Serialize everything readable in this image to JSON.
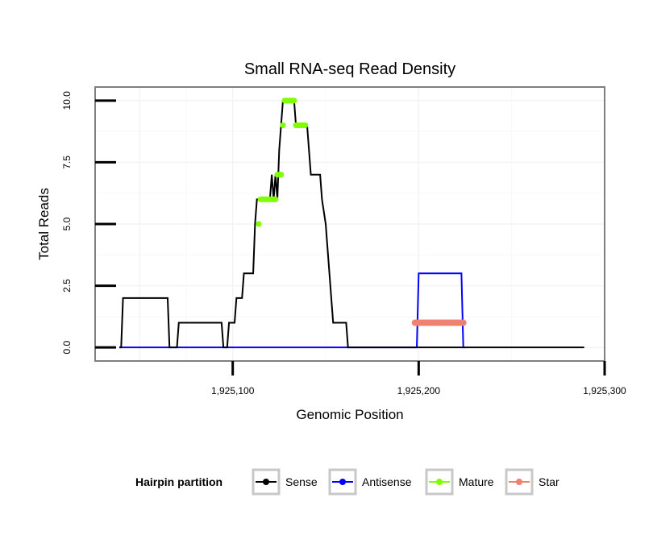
{
  "chart_data": {
    "type": "line",
    "title": "Small RNA-seq Read Density",
    "xlabel": "Genomic Position",
    "ylabel": "Total Reads",
    "xlim": [
      1925026,
      1925300
    ],
    "ylim": [
      -0.55,
      10.55
    ],
    "x_ticks": [
      1925100,
      1925200,
      1925300
    ],
    "x_tick_labels": [
      "1,925,100",
      "1,925,200",
      "1,925,300"
    ],
    "y_ticks": [
      0,
      2.5,
      5,
      7.5,
      10
    ],
    "y_tick_labels": [
      "0.0",
      "2.5",
      "5.0",
      "7.5",
      "10.0"
    ],
    "grid": true,
    "legend": {
      "title": "Hairpin partition",
      "position": "bottom",
      "entries": [
        {
          "name": "Sense",
          "color": "#000000"
        },
        {
          "name": "Antisense",
          "color": "#0000ff"
        },
        {
          "name": "Mature",
          "color": "#7fff00"
        },
        {
          "name": "Star",
          "color": "#f08070"
        }
      ]
    },
    "series": [
      {
        "name": "Sense",
        "color": "#000000",
        "points": [
          [
            1925039,
            0
          ],
          [
            1925040,
            0
          ],
          [
            1925041,
            2
          ],
          [
            1925065,
            2
          ],
          [
            1925066,
            0
          ],
          [
            1925070,
            0
          ],
          [
            1925071,
            1
          ],
          [
            1925094,
            1
          ],
          [
            1925095,
            0
          ],
          [
            1925097,
            0
          ],
          [
            1925098,
            1
          ],
          [
            1925101,
            1
          ],
          [
            1925102,
            2
          ],
          [
            1925105,
            2
          ],
          [
            1925106,
            3
          ],
          [
            1925111,
            3
          ],
          [
            1925112,
            5
          ],
          [
            1925113,
            6
          ],
          [
            1925120,
            6
          ],
          [
            1925121,
            7
          ],
          [
            1925122,
            6
          ],
          [
            1925123,
            7
          ],
          [
            1925124,
            6
          ],
          [
            1925125,
            8
          ],
          [
            1925126,
            9
          ],
          [
            1925127,
            10
          ],
          [
            1925133,
            10
          ],
          [
            1925134,
            9
          ],
          [
            1925140,
            9
          ],
          [
            1925141,
            8
          ],
          [
            1925142,
            7
          ],
          [
            1925147,
            7
          ],
          [
            1925148,
            6
          ],
          [
            1925150,
            5
          ],
          [
            1925151,
            4
          ],
          [
            1925152,
            3
          ],
          [
            1925153,
            2
          ],
          [
            1925154,
            1
          ],
          [
            1925161,
            1
          ],
          [
            1925162,
            0
          ],
          [
            1925289,
            0
          ]
        ]
      },
      {
        "name": "Antisense",
        "color": "#0000ff",
        "points": [
          [
            1925039,
            0
          ],
          [
            1925199,
            0
          ],
          [
            1925200,
            3
          ],
          [
            1925223,
            3
          ],
          [
            1925224,
            0
          ],
          [
            1925225,
            0
          ]
        ]
      },
      {
        "name": "Mature",
        "color": "#7fff00",
        "points": [
          [
            1925114,
            5
          ],
          [
            1925115,
            6
          ],
          [
            1925116,
            6
          ],
          [
            1925117,
            6
          ],
          [
            1925118,
            6
          ],
          [
            1925119,
            6
          ],
          [
            1925120,
            6
          ],
          [
            1925121,
            6
          ],
          [
            1925122,
            6
          ],
          [
            1925123,
            6
          ],
          [
            1925124,
            7
          ],
          [
            1925125,
            7
          ],
          [
            1925126,
            7
          ],
          [
            1925127,
            9
          ],
          [
            1925128,
            10
          ],
          [
            1925129,
            10
          ],
          [
            1925130,
            10
          ],
          [
            1925131,
            10
          ],
          [
            1925132,
            10
          ],
          [
            1925133,
            10
          ],
          [
            1925134,
            9
          ],
          [
            1925135,
            9
          ],
          [
            1925136,
            9
          ],
          [
            1925137,
            9
          ],
          [
            1925138,
            9
          ],
          [
            1925139,
            9
          ]
        ]
      },
      {
        "name": "Star",
        "color": "#f08070",
        "points": [
          [
            1925198,
            1
          ],
          [
            1925199,
            1
          ],
          [
            1925200,
            1
          ],
          [
            1925201,
            1
          ],
          [
            1925202,
            1
          ],
          [
            1925203,
            1
          ],
          [
            1925204,
            1
          ],
          [
            1925205,
            1
          ],
          [
            1925206,
            1
          ],
          [
            1925207,
            1
          ],
          [
            1925208,
            1
          ],
          [
            1925209,
            1
          ],
          [
            1925210,
            1
          ],
          [
            1925211,
            1
          ],
          [
            1925212,
            1
          ],
          [
            1925213,
            1
          ],
          [
            1925214,
            1
          ],
          [
            1925215,
            1
          ],
          [
            1925216,
            1
          ],
          [
            1925217,
            1
          ],
          [
            1925218,
            1
          ],
          [
            1925219,
            1
          ],
          [
            1925220,
            1
          ],
          [
            1925221,
            1
          ],
          [
            1925222,
            1
          ],
          [
            1925223,
            1
          ],
          [
            1925224,
            1
          ]
        ]
      }
    ]
  }
}
